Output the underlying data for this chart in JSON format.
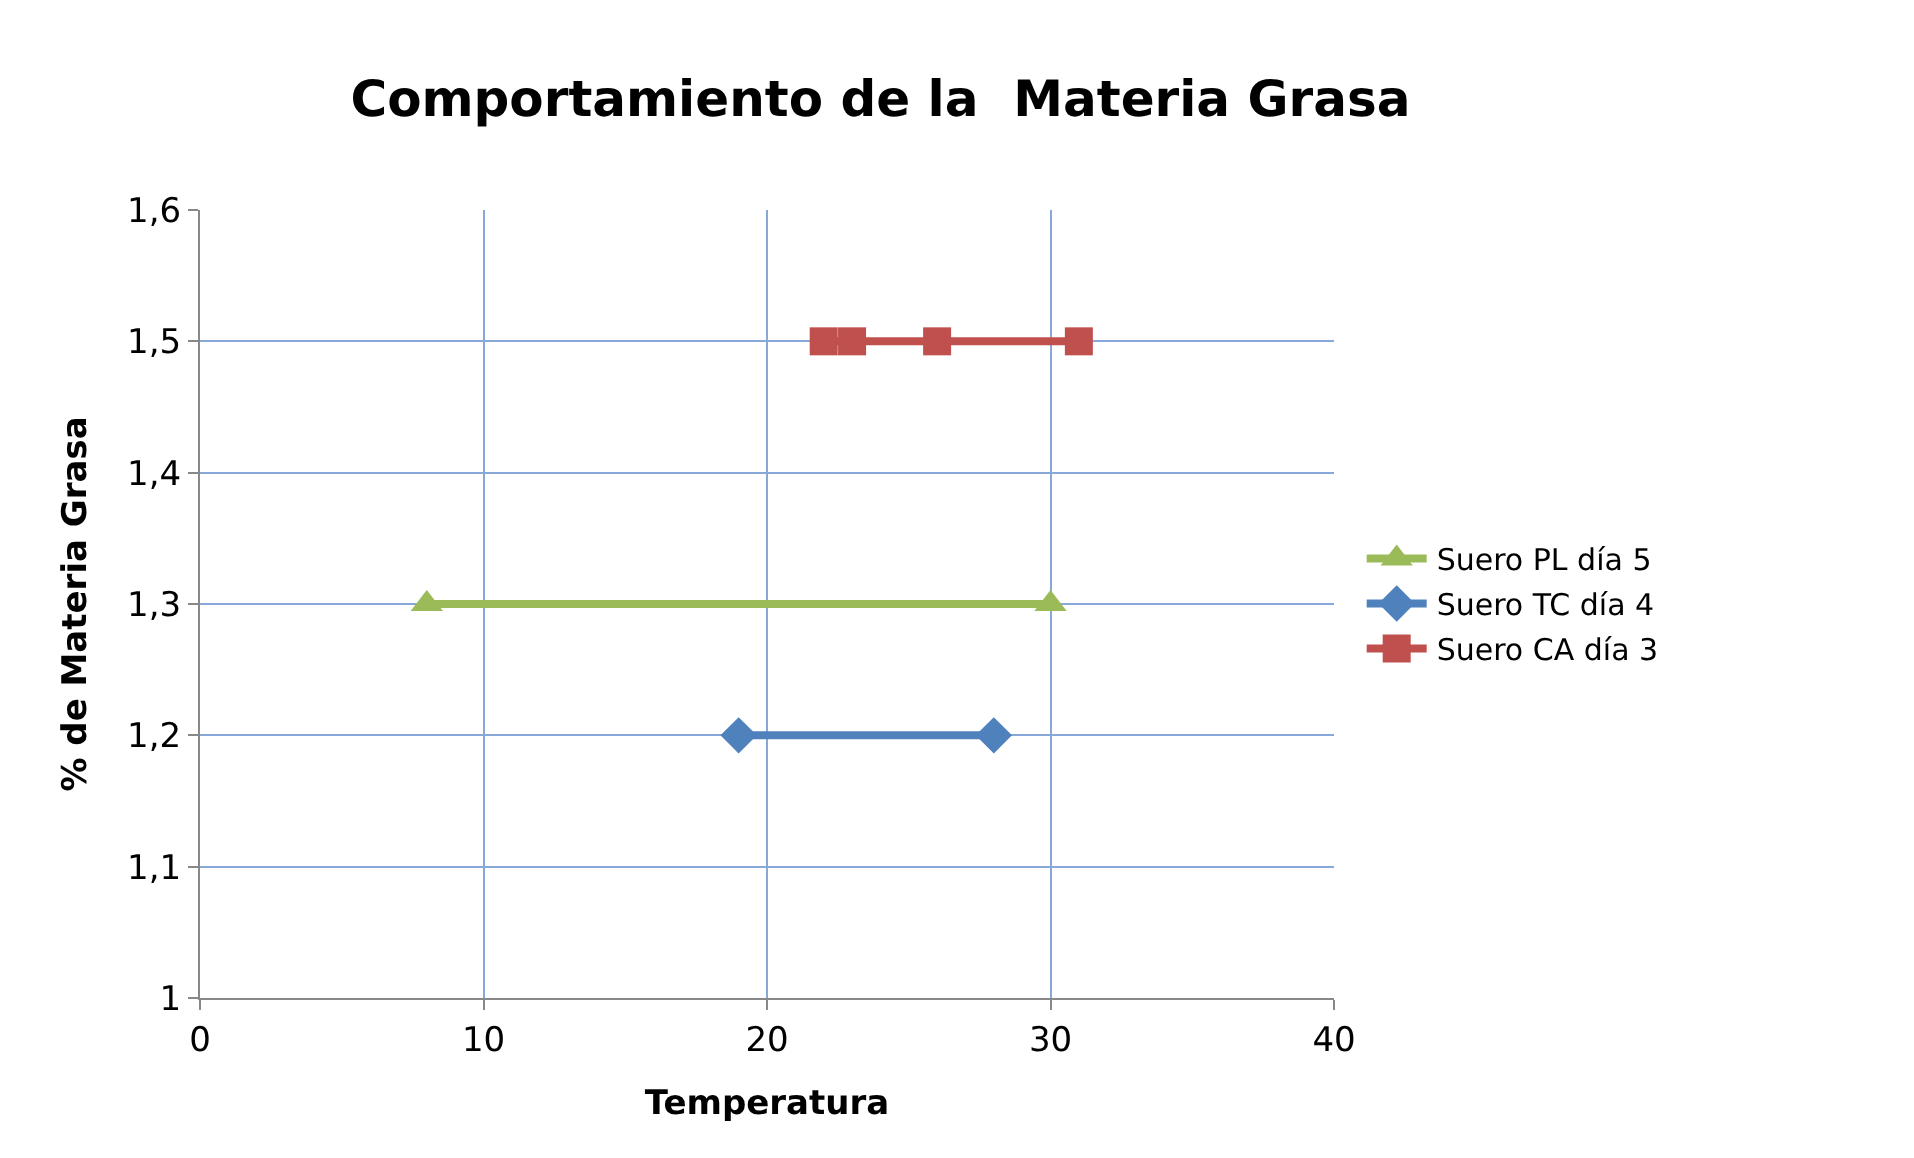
{
  "chart_data": {
    "type": "line",
    "title": "Comportamiento de la  Materia Grasa",
    "xlabel": "Temperatura",
    "ylabel": "% de Materia Grasa",
    "series": [
      {
        "name": "Suero PL día 5",
        "color": "#9bbb59",
        "marker": "triangle",
        "x": [
          8,
          30
        ],
        "values": [
          1.3,
          1.3
        ]
      },
      {
        "name": "Suero TC día 4",
        "color": "#4f81bd",
        "marker": "diamond",
        "x": [
          19,
          28
        ],
        "values": [
          1.2,
          1.2
        ]
      },
      {
        "name": "Suero CA día 3",
        "color": "#c0504d",
        "marker": "square",
        "x": [
          22,
          23,
          26,
          31
        ],
        "values": [
          1.5,
          1.5,
          1.5,
          1.5
        ]
      }
    ],
    "xlim": [
      0,
      40
    ],
    "xticks": [
      0,
      10,
      20,
      30,
      40
    ],
    "ylim": [
      1,
      1.6
    ],
    "yticks": [
      1,
      {
        "value": 1.1,
        "label": "1,1"
      },
      {
        "value": 1.2,
        "label": "1,2"
      },
      {
        "value": 1.3,
        "label": "1,3"
      },
      {
        "value": 1.4,
        "label": "1,4"
      },
      {
        "value": 1.5,
        "label": "1,5"
      },
      {
        "value": 1.6,
        "label": "1,6"
      }
    ],
    "grid": true,
    "legend": "right",
    "line_style": "solid"
  }
}
